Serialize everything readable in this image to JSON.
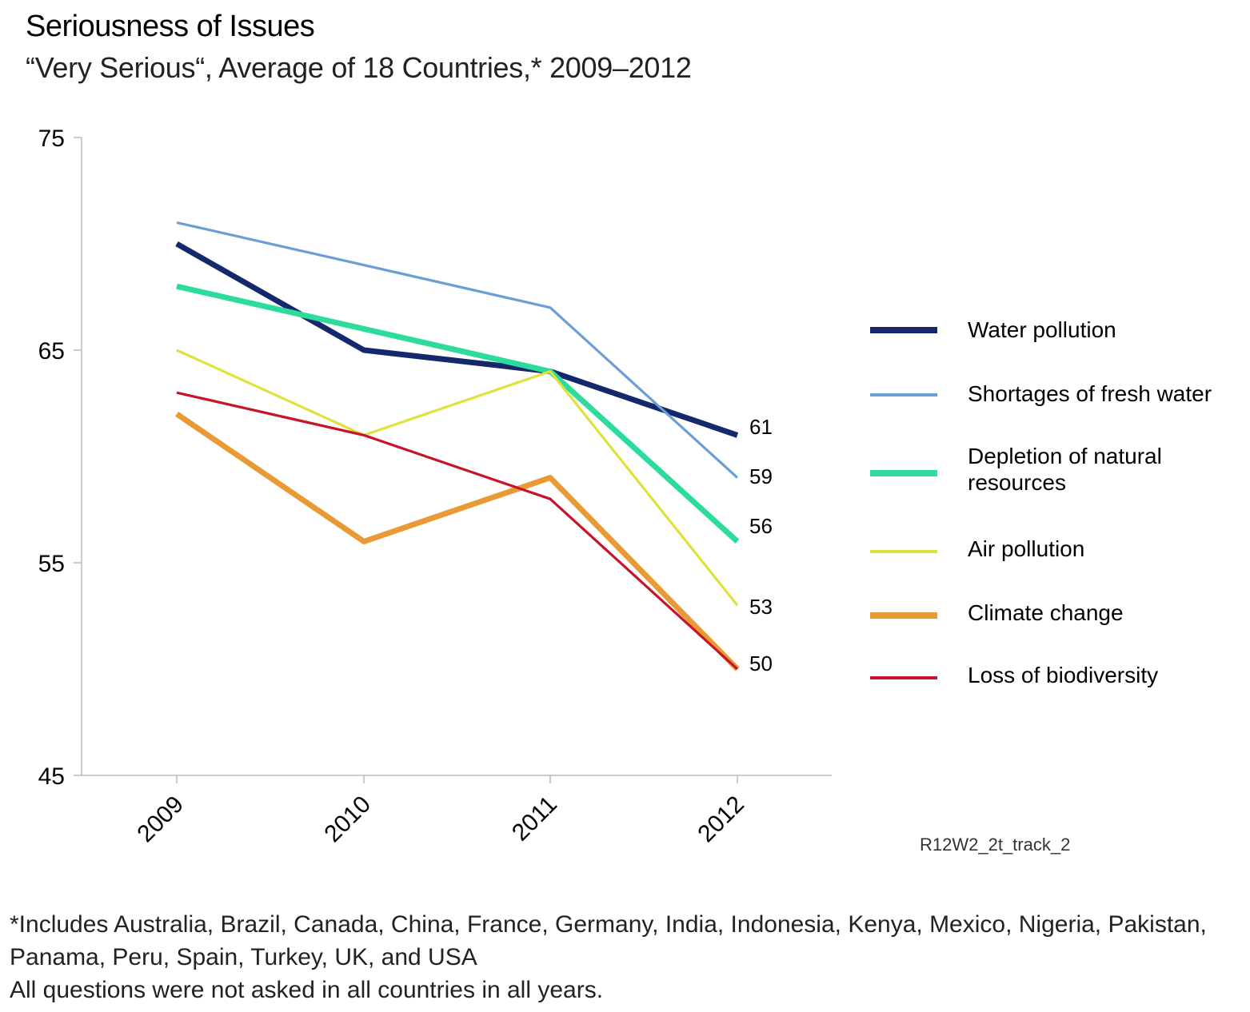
{
  "header": {
    "title": "Seriousness of Issues",
    "subtitle": "“Very Serious“, Average of 18 Countries,* 2009–2012"
  },
  "chart_data": {
    "type": "line",
    "title": "Seriousness of Issues",
    "subtitle": "“Very Serious“, Average of 18 Countries,* 2009–2012",
    "categories": [
      "2009",
      "2010",
      "2011",
      "2012"
    ],
    "ylim": [
      45,
      75
    ],
    "yticks": [
      "45",
      "55",
      "65",
      "75"
    ],
    "xlabel": "",
    "ylabel": "",
    "grid": false,
    "legend_position": "right",
    "series": [
      {
        "name": "Water pollution",
        "values": [
          70,
          65,
          64,
          61
        ],
        "color": "#14286b",
        "weight": "thick",
        "end_label": "61"
      },
      {
        "name": "Shortages of fresh water",
        "values": [
          71,
          69,
          67,
          59
        ],
        "color": "#6b9fd4",
        "weight": "thin",
        "end_label": "59"
      },
      {
        "name": "Depletion of natural resources",
        "values": [
          68,
          66,
          64,
          56
        ],
        "color": "#2ddc9a",
        "weight": "thick",
        "end_label": "56"
      },
      {
        "name": "Air pollution",
        "values": [
          65,
          61,
          64,
          53
        ],
        "color": "#dfe23c",
        "weight": "thin",
        "end_label": "53"
      },
      {
        "name": "Climate change",
        "values": [
          62,
          56,
          59,
          50
        ],
        "color": "#ea9a35",
        "weight": "thick",
        "end_label": "50"
      },
      {
        "name": "Loss of biodiversity",
        "values": [
          63,
          61,
          58,
          50
        ],
        "color": "#c8142a",
        "weight": "thin",
        "end_label": ""
      }
    ]
  },
  "legend": {
    "items": [
      {
        "label_lines": [
          "Water pollution"
        ]
      },
      {
        "label_lines": [
          "Shortages of fresh water"
        ]
      },
      {
        "label_lines": [
          "Depletion of natural",
          "resources"
        ]
      },
      {
        "label_lines": [
          "Air pollution"
        ]
      },
      {
        "label_lines": [
          "Climate change"
        ]
      },
      {
        "label_lines": [
          "Loss of biodiversity"
        ]
      }
    ]
  },
  "source_code": "R12W2_2t_track_2",
  "footnote": {
    "line1": "*Includes Australia, Brazil, Canada, China, France, Germany, India, Indonesia, Kenya, Mexico, Nigeria, Pakistan,",
    "line2": "Panama, Peru, Spain, Turkey, UK, and USA",
    "line3": "All questions were not asked in all countries in all years."
  }
}
